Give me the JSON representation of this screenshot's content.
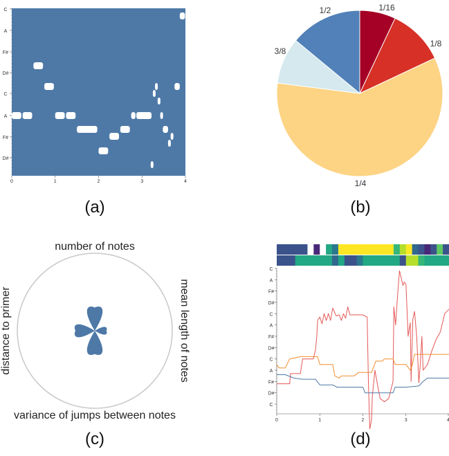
{
  "panel_labels": [
    "(a)",
    "(b)",
    "(c)",
    "(d)"
  ],
  "colors": {
    "roll_bg": "#4e79a7",
    "note": "#ffffff",
    "line_red": "#e45756",
    "line_orange": "#f28e2b",
    "line_blue": "#4e79a7",
    "petal": "#4e79a7"
  },
  "chart_data": [
    {
      "panel": "(a)",
      "type": "piano-roll",
      "y_tick_labels": [
        "C",
        "A",
        "F#",
        "D#",
        "C",
        "A",
        "F#",
        "D#"
      ],
      "x_ticks": [
        0,
        1,
        2,
        3,
        4
      ],
      "xlim": [
        0,
        4
      ],
      "notes": [
        {
          "start": 0.0,
          "end": 0.22,
          "pitch": "A"
        },
        {
          "start": 0.25,
          "end": 0.47,
          "pitch": "A"
        },
        {
          "start": 0.5,
          "end": 0.72,
          "pitch": "D#"
        },
        {
          "start": 0.75,
          "end": 0.97,
          "pitch": "C"
        },
        {
          "start": 1.0,
          "end": 1.22,
          "pitch": "A"
        },
        {
          "start": 1.25,
          "end": 1.47,
          "pitch": "A"
        },
        {
          "start": 1.5,
          "end": 1.97,
          "pitch": "G"
        },
        {
          "start": 2.0,
          "end": 2.22,
          "pitch": "E"
        },
        {
          "start": 2.25,
          "end": 2.47,
          "pitch": "F#"
        },
        {
          "start": 2.5,
          "end": 2.72,
          "pitch": "G"
        },
        {
          "start": 2.75,
          "end": 2.85,
          "pitch": "A"
        },
        {
          "start": 2.87,
          "end": 3.22,
          "pitch": "A"
        },
        {
          "start": 3.25,
          "end": 3.3,
          "pitch": "C#"
        },
        {
          "start": 3.3,
          "end": 3.36,
          "pitch": "C"
        },
        {
          "start": 3.36,
          "end": 3.42,
          "pitch": "B"
        },
        {
          "start": 3.42,
          "end": 3.48,
          "pitch": "A"
        },
        {
          "start": 3.48,
          "end": 3.6,
          "pitch": "G"
        },
        {
          "start": 3.6,
          "end": 3.66,
          "pitch": "F"
        },
        {
          "start": 3.66,
          "end": 3.72,
          "pitch": "F#"
        },
        {
          "start": 3.75,
          "end": 3.87,
          "pitch": "C"
        },
        {
          "start": 3.87,
          "end": 3.99,
          "pitch": "C+"
        },
        {
          "start": 3.2,
          "end": 3.26,
          "pitch": "D"
        }
      ]
    },
    {
      "panel": "(b)",
      "type": "pie",
      "slices": [
        {
          "label": "1/16",
          "value": 7,
          "color": "#a50026"
        },
        {
          "label": "1/8",
          "value": 11,
          "color": "#d73027"
        },
        {
          "label": "1/4",
          "value": 59,
          "color": "#fdd384"
        },
        {
          "label": "3/8",
          "value": 9,
          "color": "#d5e9ee"
        },
        {
          "label": "1/2",
          "value": 14,
          "color": "#5181b8"
        }
      ]
    },
    {
      "panel": "(c)",
      "type": "radial-glyph",
      "axes": [
        {
          "label": "number of notes",
          "value": 0.3
        },
        {
          "label": "mean length of notes",
          "value": 0.15
        },
        {
          "label": "variance of jumps between notes",
          "value": 0.3
        },
        {
          "label": "distance to primer",
          "value": 0.25
        }
      ],
      "rlim": [
        0,
        1
      ]
    },
    {
      "panel": "(d)",
      "type": "line",
      "y_tick_labels": [
        "C",
        "A",
        "F#",
        "D#",
        "C",
        "A",
        "F#",
        "D#",
        "C",
        "A",
        "F#",
        "D#",
        "C"
      ],
      "x_ticks": [
        0,
        1,
        2,
        3,
        4
      ],
      "xlim": [
        0,
        4
      ],
      "heatmap_rows": [
        [
          "#3b528b",
          "#3b528b",
          "#3b528b",
          "#3b528b",
          "#3b528b",
          "#ffffff",
          "#482878",
          "#ffffff",
          "#22a884",
          "#2a788e",
          "#fde725",
          "#fde725",
          "#fde725",
          "#fde725",
          "#fde725",
          "#fde725",
          "#fde725",
          "#fde725",
          "#fde725",
          "#35b779",
          "#b5de2b",
          "#fde725",
          "#31688e",
          "#3b528b",
          "#482878",
          "#3b528b",
          "#5ec962",
          "#3b528b"
        ],
        [
          "#3b528b",
          "#3b528b",
          "#3b528b",
          "#22a884",
          "#22a884",
          "#22a884",
          "#22a884",
          "#22a884",
          "#22a884",
          "#31688e",
          "#22a884",
          "#3b528b",
          "#3b528b",
          "#2a788e",
          "#22a884",
          "#22a884",
          "#22a884",
          "#22a884",
          "#22a884",
          "#22a884",
          "#3b528b",
          "#b5de2b",
          "#b5de2b",
          "#35b779",
          "#22a884",
          "#22a884",
          "#22a884",
          "#22a884"
        ]
      ],
      "series": [
        {
          "color": "#e45756",
          "points": [
            [
              0,
              10.2
            ],
            [
              0.3,
              10.2
            ],
            [
              0.32,
              9.3
            ],
            [
              0.55,
              9.3
            ],
            [
              0.6,
              8.0
            ],
            [
              0.85,
              8.0
            ],
            [
              0.9,
              7.2
            ],
            [
              0.93,
              6.0
            ],
            [
              0.95,
              4.6
            ],
            [
              1.0,
              4.3
            ],
            [
              1.05,
              4.9
            ],
            [
              1.1,
              4.0
            ],
            [
              1.15,
              4.6
            ],
            [
              1.2,
              4.0
            ],
            [
              1.25,
              4.6
            ],
            [
              1.3,
              3.5
            ],
            [
              1.38,
              4.2
            ],
            [
              1.45,
              4.1
            ],
            [
              1.5,
              4.6
            ],
            [
              1.55,
              4.0
            ],
            [
              1.6,
              4.4
            ],
            [
              1.65,
              3.4
            ],
            [
              1.7,
              4.1
            ],
            [
              2.0,
              4.1
            ],
            [
              2.1,
              4.3
            ],
            [
              2.13,
              10.3
            ],
            [
              2.16,
              14.2
            ],
            [
              2.2,
              13.4
            ],
            [
              2.22,
              11.3
            ],
            [
              2.28,
              9.0
            ],
            [
              2.35,
              10.5
            ],
            [
              2.4,
              11.5
            ],
            [
              2.5,
              11.8
            ],
            [
              2.6,
              11.5
            ],
            [
              2.7,
              10.0
            ],
            [
              2.72,
              3.4
            ],
            [
              2.76,
              5.0
            ],
            [
              2.8,
              2.7
            ],
            [
              2.85,
              0.2
            ],
            [
              2.9,
              1.0
            ],
            [
              2.93,
              1.5
            ],
            [
              2.96,
              1.2
            ],
            [
              3.0,
              1.4
            ],
            [
              3.05,
              6.0
            ],
            [
              3.1,
              4.8
            ],
            [
              3.12,
              10.0
            ],
            [
              3.16,
              4.5
            ],
            [
              3.2,
              3.8
            ],
            [
              3.25,
              6.0
            ],
            [
              3.3,
              10.1
            ],
            [
              3.33,
              8.6
            ],
            [
              3.37,
              6.0
            ],
            [
              3.4,
              9.0
            ],
            [
              3.5,
              8.5
            ],
            [
              3.6,
              7.3
            ],
            [
              3.7,
              6.3
            ],
            [
              3.8,
              5.6
            ],
            [
              3.9,
              4.0
            ],
            [
              4.0,
              3.6
            ]
          ]
        },
        {
          "color": "#f28e2b",
          "points": [
            [
              0,
              8.5
            ],
            [
              0.05,
              8.8
            ],
            [
              0.2,
              8.8
            ],
            [
              0.3,
              8.0
            ],
            [
              0.55,
              7.8
            ],
            [
              0.95,
              7.8
            ],
            [
              1.0,
              8.5
            ],
            [
              1.3,
              8.5
            ],
            [
              1.35,
              9.5
            ],
            [
              1.45,
              9.7
            ],
            [
              1.5,
              9.5
            ],
            [
              1.8,
              9.5
            ],
            [
              1.9,
              9.2
            ],
            [
              2.2,
              9.2
            ],
            [
              2.25,
              8.7
            ],
            [
              2.3,
              8.2
            ],
            [
              2.45,
              8.2
            ],
            [
              2.5,
              8.0
            ],
            [
              2.7,
              8.0
            ],
            [
              2.75,
              8.5
            ],
            [
              3.0,
              8.5
            ],
            [
              3.1,
              9.0
            ],
            [
              3.15,
              8.5
            ],
            [
              3.2,
              7.6
            ],
            [
              3.5,
              7.6
            ],
            [
              3.6,
              7.6
            ],
            [
              4.0,
              7.6
            ]
          ]
        },
        {
          "color": "#4e79a7",
          "points": [
            [
              0,
              9.4
            ],
            [
              0.2,
              9.4
            ],
            [
              0.4,
              9.7
            ],
            [
              0.6,
              9.8
            ],
            [
              0.9,
              9.8
            ],
            [
              1.0,
              10.3
            ],
            [
              1.3,
              10.3
            ],
            [
              1.4,
              10.5
            ],
            [
              1.5,
              10.5
            ],
            [
              2.0,
              10.5
            ],
            [
              2.05,
              11.0
            ],
            [
              2.2,
              11.0
            ],
            [
              2.5,
              11.0
            ],
            [
              2.7,
              11.0
            ],
            [
              2.75,
              10.5
            ],
            [
              3.0,
              10.5
            ],
            [
              3.3,
              10.4
            ],
            [
              3.4,
              10.0
            ],
            [
              3.5,
              9.7
            ],
            [
              4.0,
              9.7
            ]
          ]
        }
      ]
    }
  ]
}
